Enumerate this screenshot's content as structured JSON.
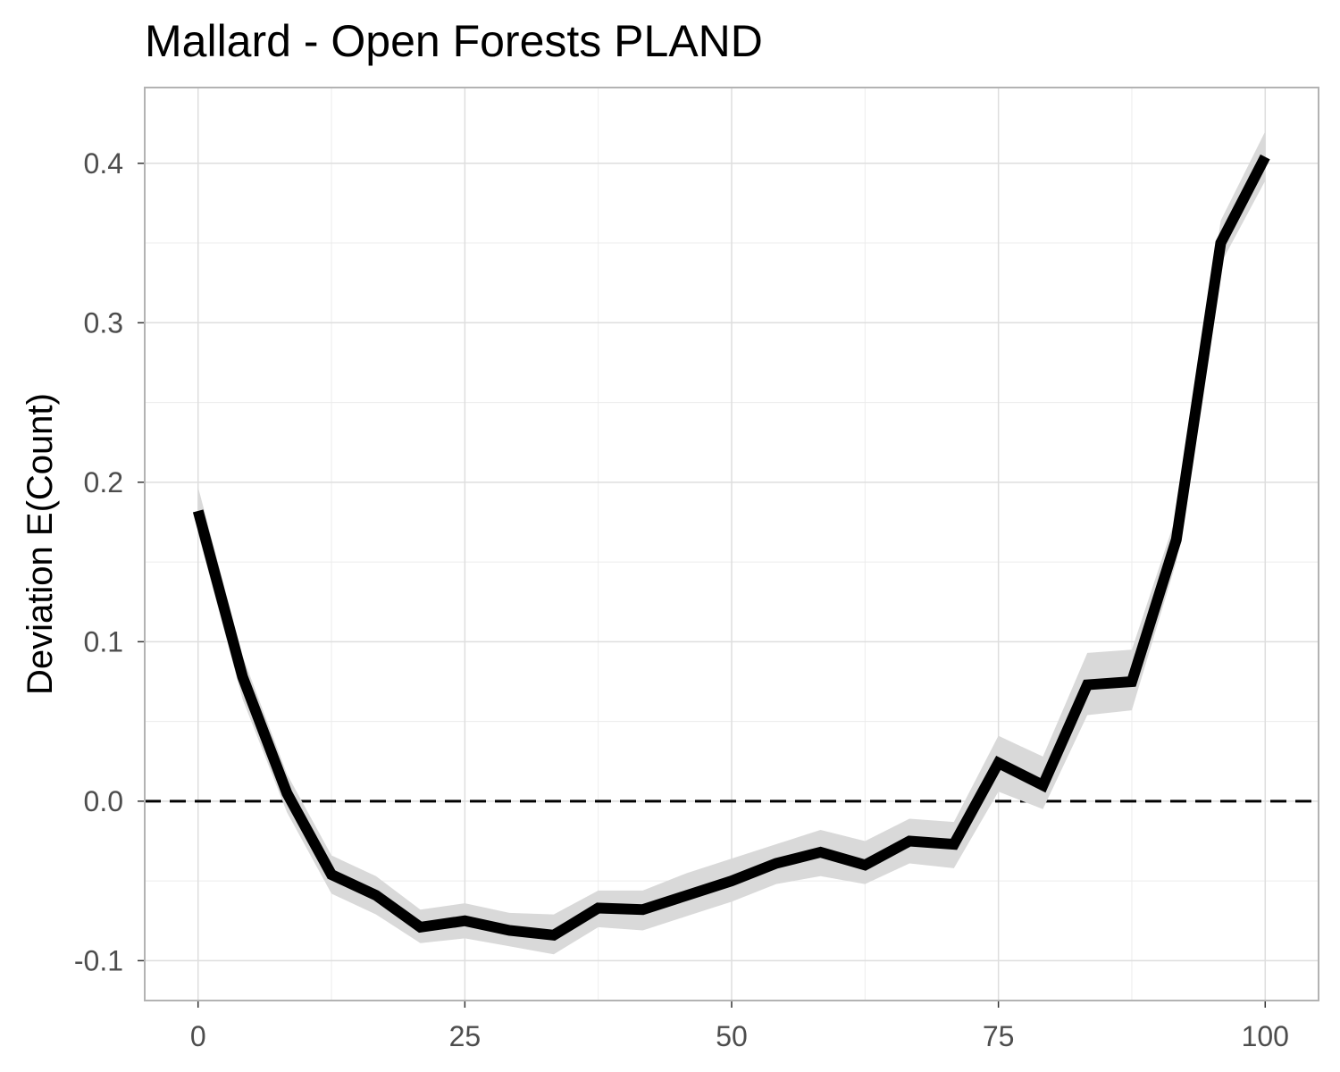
{
  "chart_data": {
    "type": "line",
    "title": "Mallard - Open Forests PLAND",
    "xlabel": "",
    "ylabel": "Deviation E(Count)",
    "xlim": [
      -5,
      105
    ],
    "ylim": [
      -0.125,
      0.4475
    ],
    "x_ticks": [
      "0",
      "25",
      "50",
      "75",
      "100"
    ],
    "y_ticks": [
      "-0.1",
      "0.0",
      "0.1",
      "0.2",
      "0.3",
      "0.4"
    ],
    "x_tick_values": [
      0,
      25,
      50,
      75,
      100
    ],
    "y_tick_values": [
      -0.1,
      0.0,
      0.1,
      0.2,
      0.3,
      0.4
    ],
    "grid": true,
    "reference_line": {
      "y": 0.0,
      "style": "dashed"
    },
    "series": [
      {
        "x": [
          0,
          4.17,
          8.33,
          12.5,
          16.67,
          20.83,
          25,
          29.17,
          33.33,
          37.5,
          41.67,
          45.83,
          50,
          54.17,
          58.33,
          62.5,
          66.67,
          70.83,
          75,
          79.17,
          83.33,
          87.5,
          91.67,
          95.83,
          100
        ],
        "values": [
          0.182,
          0.078,
          0.005,
          -0.046,
          -0.059,
          -0.079,
          -0.075,
          -0.081,
          -0.084,
          -0.067,
          -0.068,
          -0.059,
          -0.05,
          -0.039,
          -0.032,
          -0.04,
          -0.025,
          -0.027,
          0.024,
          0.01,
          0.073,
          0.075,
          0.164,
          0.35,
          0.404
        ],
        "lower": [
          0.168,
          0.064,
          -0.007,
          -0.058,
          -0.071,
          -0.089,
          -0.086,
          -0.091,
          -0.096,
          -0.079,
          -0.081,
          -0.072,
          -0.063,
          -0.052,
          -0.047,
          -0.052,
          -0.039,
          -0.042,
          0.006,
          -0.005,
          0.054,
          0.057,
          0.15,
          0.337,
          0.389
        ],
        "upper": [
          0.197,
          0.091,
          0.017,
          -0.034,
          -0.047,
          -0.068,
          -0.064,
          -0.07,
          -0.071,
          -0.056,
          -0.056,
          -0.045,
          -0.036,
          -0.027,
          -0.018,
          -0.025,
          -0.011,
          -0.013,
          0.041,
          0.028,
          0.093,
          0.095,
          0.179,
          0.364,
          0.42
        ],
        "color": "#000000",
        "band_color": "#d9d9d9"
      }
    ]
  }
}
